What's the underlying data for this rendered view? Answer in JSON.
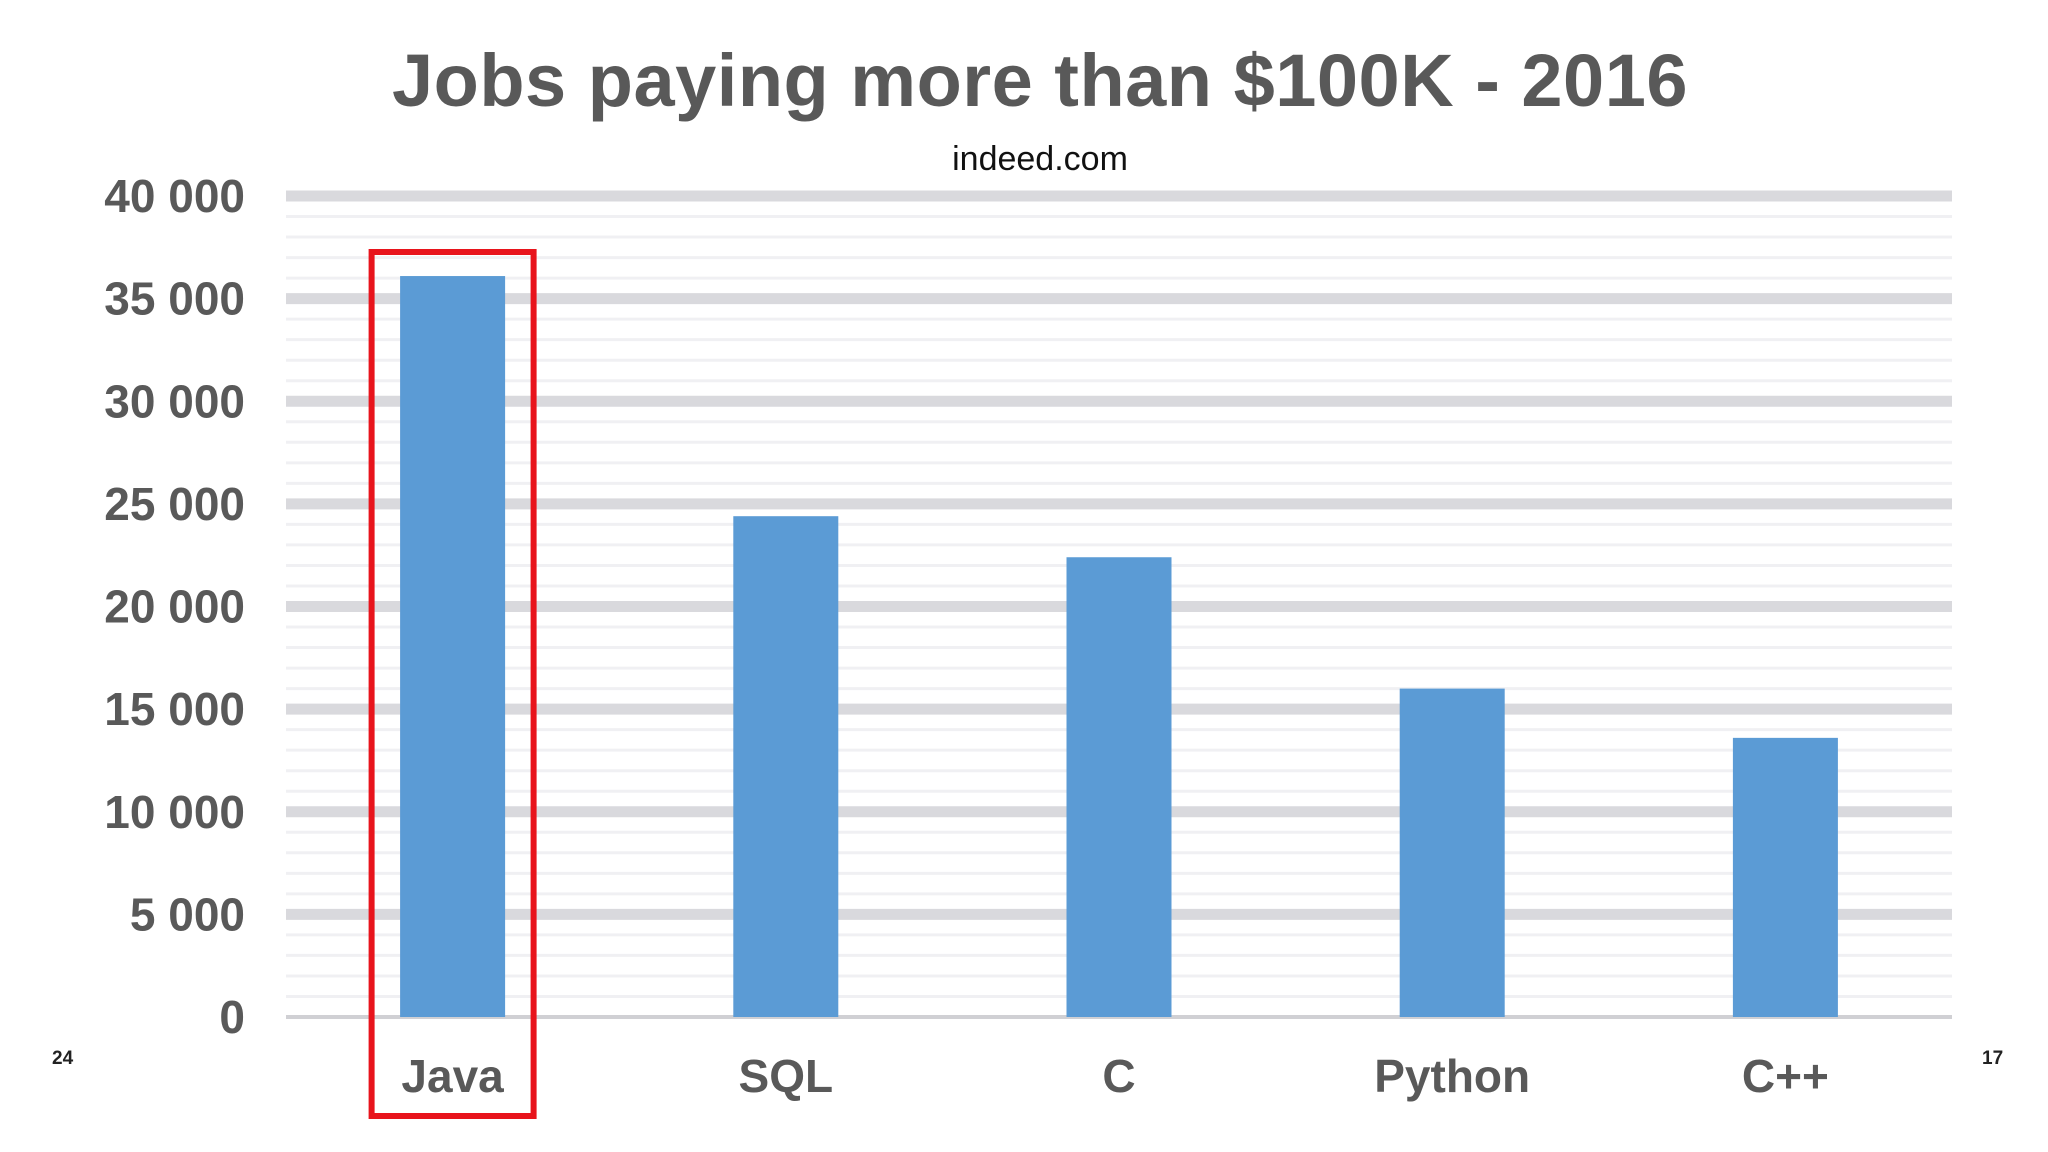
{
  "chart_data": {
    "type": "bar",
    "title": "Jobs paying more than $100K - 2016",
    "subtitle": "indeed.com",
    "xlabel": "",
    "ylabel": "",
    "categories": [
      "Java",
      "SQL",
      "C",
      "Python",
      "C++"
    ],
    "values": [
      36100,
      24400,
      22400,
      16000,
      13600
    ],
    "ylim": [
      0,
      40000
    ],
    "yticks": [
      0,
      5000,
      10000,
      15000,
      20000,
      25000,
      30000,
      35000,
      40000
    ],
    "ytick_labels": [
      "0",
      "5 000",
      "10 000",
      "15 000",
      "20 000",
      "25 000",
      "30 000",
      "35 000",
      "40 000"
    ],
    "grid": true,
    "bar_color": "#5b9bd5",
    "highlight": {
      "category": "Java",
      "color": "#e8141c"
    }
  },
  "footer": {
    "left": "24",
    "right": "17"
  }
}
